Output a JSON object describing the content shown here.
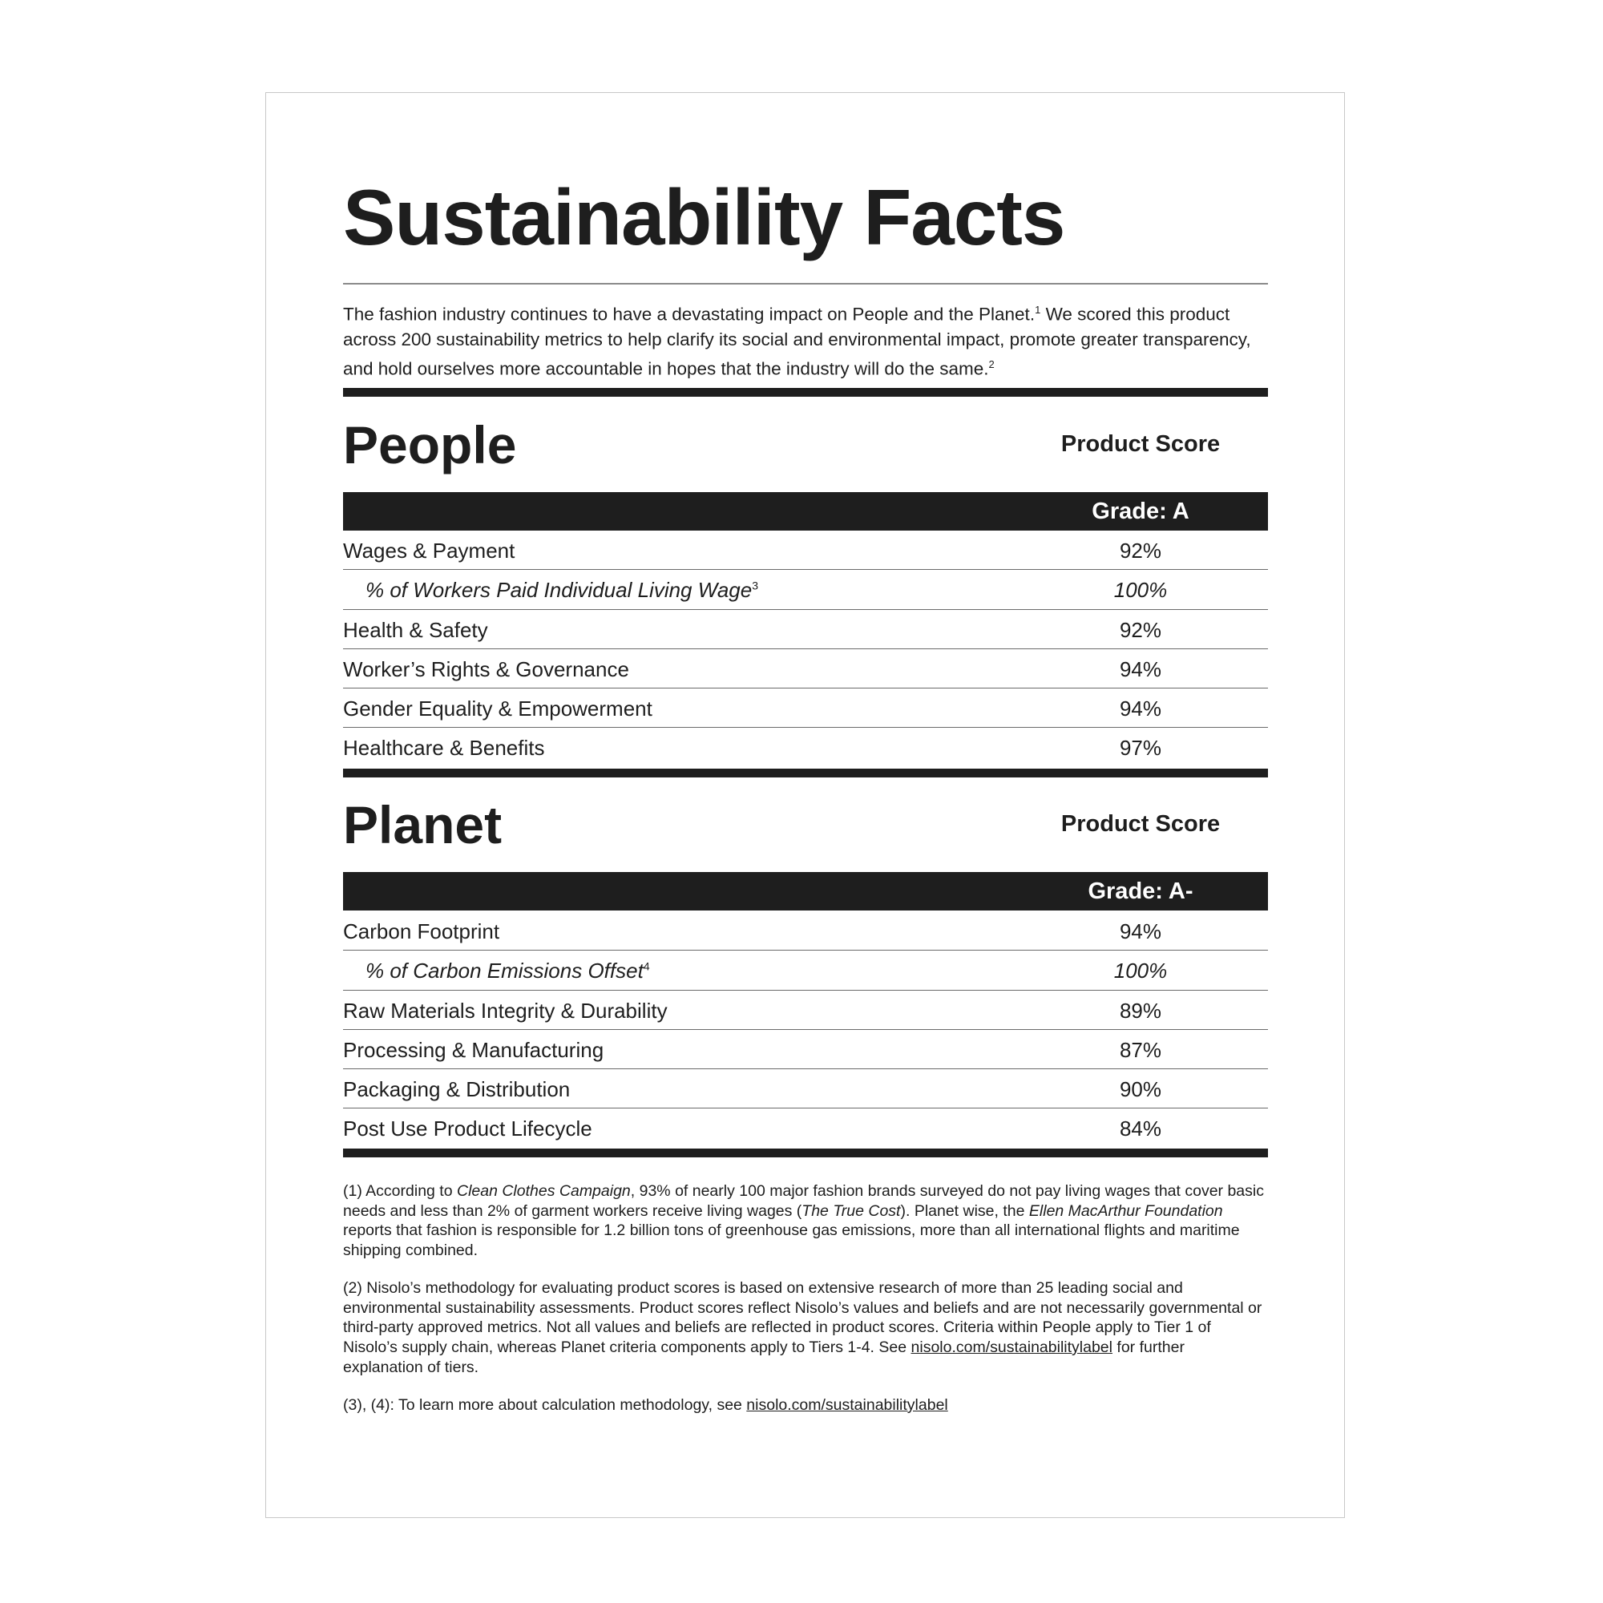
{
  "title": "Sustainability Facts",
  "intro": {
    "text1": "The fashion industry continues to have a devastating impact on People and the Planet.",
    "sup1": "1",
    "text2": " We scored this product across 200 sustainability metrics to help clarify its social and environmental impact, promote greater transparency, and hold ourselves more accountable in hopes that the industry will do the same.",
    "sup2": "2"
  },
  "people": {
    "heading": "People",
    "score_label": "Product Score",
    "grade": "Grade: A",
    "rows": [
      {
        "label": "Wages & Payment",
        "value": "92%"
      },
      {
        "label": "% of Workers Paid Individual Living Wage",
        "sup": "3",
        "value": "100%",
        "sub": true
      },
      {
        "label": "Health & Safety",
        "value": "92%"
      },
      {
        "label": "Worker’s Rights & Governance",
        "value": "94%"
      },
      {
        "label": "Gender Equality & Empowerment",
        "value": "94%"
      },
      {
        "label": "Healthcare & Benefits",
        "value": "97%"
      }
    ]
  },
  "planet": {
    "heading": "Planet",
    "score_label": "Product Score",
    "grade": "Grade: A-",
    "rows": [
      {
        "label": "Carbon Footprint",
        "value": "94%"
      },
      {
        "label": "% of Carbon Emissions Offset",
        "sup": "4",
        "value": "100%",
        "sub": true
      },
      {
        "label": "Raw Materials Integrity & Durability",
        "value": "89%"
      },
      {
        "label": "Processing & Manufacturing",
        "value": "87%"
      },
      {
        "label": "Packaging & Distribution",
        "value": "90%"
      },
      {
        "label": "Post Use Product Lifecycle",
        "value": "84%"
      }
    ]
  },
  "footnotes": {
    "fn1": {
      "a": "(1) According to ",
      "a_i": "Clean Clothes Campaign",
      "b": ", 93% of nearly 100 major fashion brands surveyed do not pay living wages that cover basic needs and less than 2% of garment workers receive living wages (",
      "b_i": "The True Cost",
      "c": "). Planet wise, the ",
      "c_i": "Ellen MacArthur Foundation",
      "d": " reports that fashion is responsible for 1.2 billion tons of greenhouse gas emissions, more than all international flights and maritime shipping combined."
    },
    "fn2": {
      "text": "(2) Nisolo’s methodology for evaluating product scores is based on extensive research of more than 25 leading social and environmental sustainability assessments. Product scores reflect Nisolo’s values and beliefs and are not necessarily governmental or third-party approved metrics. Not all values and beliefs are reflected in product scores. Criteria within People apply to Tier 1 of Nisolo’s supply chain, whereas Planet criteria components apply to Tiers 1-4. See ",
      "link": "nisolo.com/sustainabilitylabel",
      "tail": " for further explanation of tiers."
    },
    "fn3": {
      "text": "(3), (4): To learn more about calculation methodology, see ",
      "link": "nisolo.com/sustainabilitylabel"
    }
  }
}
